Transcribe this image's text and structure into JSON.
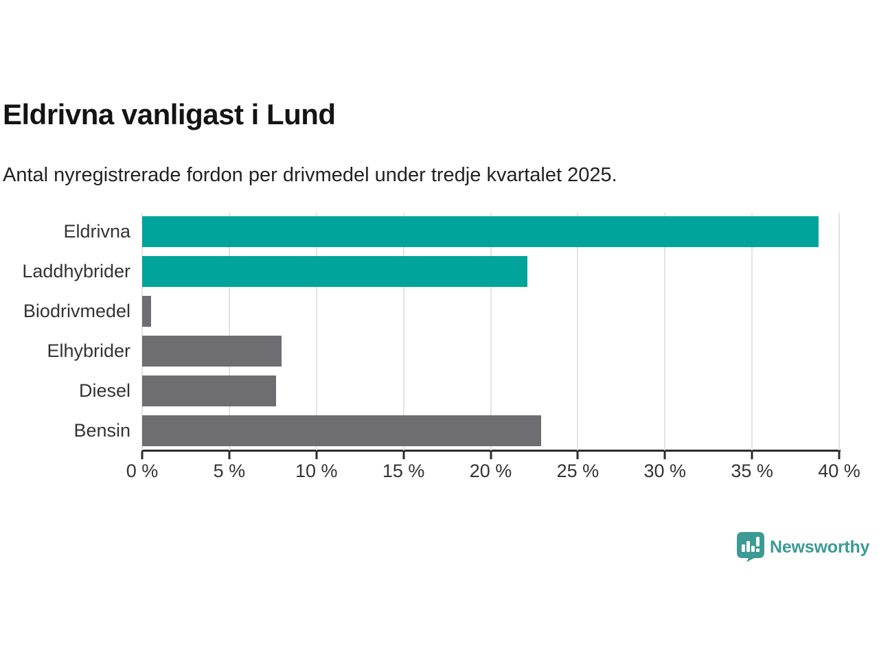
{
  "header": {
    "title": "Eldrivna vanligast i Lund",
    "subtitle": "Antal nyregistrerade fordon per drivmedel under tredje kvartalet 2025."
  },
  "chart_data": {
    "type": "bar",
    "orientation": "horizontal",
    "title": "Eldrivna vanligast i Lund",
    "subtitle": "Antal nyregistrerade fordon per drivmedel under tredje kvartalet 2025.",
    "categories": [
      "Eldrivna",
      "Laddhybrider",
      "Biodrivmedel",
      "Elhybrider",
      "Diesel",
      "Bensin"
    ],
    "values": [
      38.8,
      22.1,
      0.5,
      8.0,
      7.7,
      22.9
    ],
    "unit": "%",
    "xlabel": "",
    "ylabel": "",
    "xlim": [
      0,
      40
    ],
    "x_ticks": [
      0,
      5,
      10,
      15,
      20,
      25,
      30,
      35,
      40
    ],
    "x_tick_labels": [
      "0 %",
      "5 %",
      "10 %",
      "15 %",
      "20 %",
      "25 %",
      "30 %",
      "35 %",
      "40 %"
    ],
    "grid": true,
    "legend": "none",
    "bar_colors": [
      "#00a49a",
      "#00a49a",
      "#6d6d72",
      "#6d6d72",
      "#6d6d72",
      "#6d6d72"
    ]
  },
  "colors": {
    "highlight_teal": "#00a49a",
    "neutral_gray": "#6d6d72",
    "axis": "#2b2b2b",
    "gridline": "#e3e3e3",
    "text": "#333333",
    "brand_teal": "#3b9a94"
  },
  "branding": {
    "logo_text": "Newsworthy",
    "logo_icon": "newsworthy-chart-bubble-icon"
  }
}
